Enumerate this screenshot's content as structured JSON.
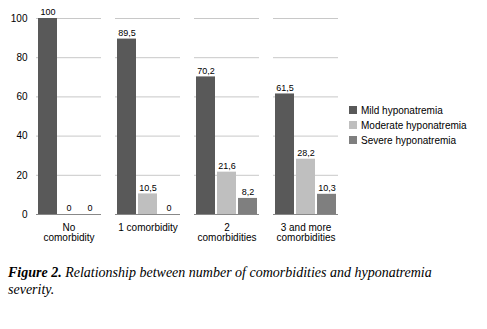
{
  "chart_data": {
    "type": "bar",
    "caption": "Figure 2. Relationship between number of comorbidities and hyponatremia severity.",
    "categories": [
      "No comorbidity",
      "1 comorbidity",
      "2 comorbidities",
      "3 and more comorbidities"
    ],
    "series": [
      {
        "name": "Mild hyponatremia",
        "color": "#595959",
        "values": [
          100,
          89.5,
          70.2,
          61.5
        ],
        "value_labels": [
          "100",
          "89,5",
          "70,2",
          "61,5"
        ]
      },
      {
        "name": "Moderate hyponatremia",
        "color": "#bfbfbf",
        "values": [
          0,
          10.5,
          21.6,
          28.2
        ],
        "value_labels": [
          "0",
          "10,5",
          "21,6",
          "28,2"
        ]
      },
      {
        "name": "Severe hyponatremia",
        "color": "#7f7f7f",
        "values": [
          0,
          0,
          8.2,
          10.3
        ],
        "value_labels": [
          "0",
          "0",
          "8,2",
          "10,3"
        ]
      }
    ],
    "ylim": [
      0,
      100
    ],
    "yticks": [
      0,
      20,
      40,
      60,
      80,
      100
    ],
    "grid": true,
    "legend": "right",
    "data_labels": true
  }
}
